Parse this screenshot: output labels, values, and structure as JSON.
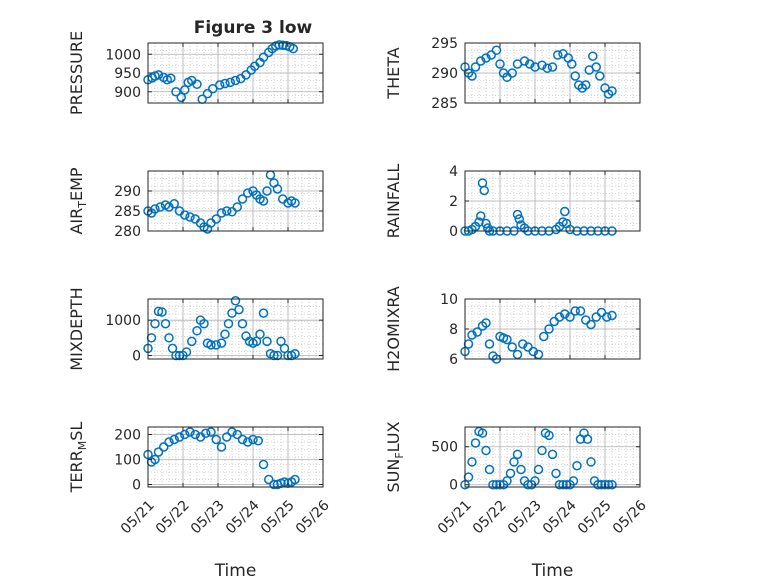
{
  "figure_title": "Figure 3 low",
  "colors": {
    "marker": "#0072BD",
    "axis": "#262626",
    "grid": "#b0b0b0",
    "background": "#ffffff"
  },
  "chart_data": [
    {
      "type": "scatter",
      "title": "Figure 3 low",
      "ylabel": "PRESSURE",
      "xlabel": "",
      "x_ticks": [
        "05/21",
        "05/22",
        "05/23",
        "05/24",
        "05/25",
        "05/26"
      ],
      "xlim": [
        0,
        5
      ],
      "ylim": [
        870,
        1030
      ],
      "y_ticks": [
        900,
        950,
        1000
      ],
      "grid": true,
      "series": [
        {
          "x": [
            0,
            0.12,
            0.2,
            0.3,
            0.45,
            0.55,
            0.65,
            0.8,
            0.95,
            1.05,
            1.15,
            1.25,
            1.4,
            1.55,
            1.7,
            1.85,
            2.05,
            2.2,
            2.35,
            2.5,
            2.65,
            2.8,
            2.95,
            3.05,
            3.2,
            3.3,
            3.45,
            3.55,
            3.65,
            3.75,
            3.85,
            3.95,
            4.05,
            4.15
          ],
          "y": [
            932,
            937,
            942,
            945,
            938,
            932,
            936,
            900,
            885,
            905,
            925,
            930,
            920,
            880,
            895,
            908,
            918,
            922,
            925,
            930,
            935,
            945,
            958,
            968,
            978,
            992,
            1005,
            1015,
            1022,
            1025,
            1024,
            1023,
            1020,
            1015
          ]
        }
      ]
    },
    {
      "type": "scatter",
      "title": "",
      "ylabel": "THETA",
      "xlabel": "",
      "x_ticks": [
        "05/21",
        "05/22",
        "05/23",
        "05/24",
        "05/25",
        "05/26"
      ],
      "xlim": [
        0,
        5
      ],
      "ylim": [
        285,
        295
      ],
      "y_ticks": [
        285,
        290,
        295
      ],
      "grid": true,
      "series": [
        {
          "x": [
            0,
            0.1,
            0.2,
            0.3,
            0.45,
            0.6,
            0.75,
            0.9,
            1.0,
            1.1,
            1.2,
            1.35,
            1.5,
            1.7,
            1.85,
            2.0,
            2.2,
            2.35,
            2.5,
            2.65,
            2.8,
            2.95,
            3.05,
            3.15,
            3.25,
            3.35,
            3.45,
            3.55,
            3.65,
            3.75,
            3.85,
            4.0,
            4.1,
            4.2
          ],
          "y": [
            291,
            290,
            289.5,
            291,
            292,
            292.5,
            293,
            293.8,
            291.5,
            290,
            289.3,
            290,
            291.5,
            292,
            291.5,
            291,
            291.3,
            290.8,
            291,
            293,
            293.2,
            292.5,
            291.5,
            289.5,
            288,
            287.5,
            288,
            290.5,
            292.8,
            291,
            289.5,
            287.5,
            286.5,
            287
          ]
        }
      ]
    },
    {
      "type": "scatter",
      "title": "",
      "ylabel_base": "AIR",
      "ylabel_sub": "T",
      "ylabel_rest": "EMP",
      "xlabel": "",
      "x_ticks": [
        "05/21",
        "05/22",
        "05/23",
        "05/24",
        "05/25",
        "05/26"
      ],
      "xlim": [
        0,
        5
      ],
      "ylim": [
        280,
        295
      ],
      "y_ticks": [
        280,
        285,
        290
      ],
      "grid": true,
      "series": [
        {
          "x": [
            0,
            0.1,
            0.2,
            0.35,
            0.5,
            0.6,
            0.75,
            0.9,
            1.05,
            1.2,
            1.35,
            1.5,
            1.6,
            1.7,
            1.8,
            1.95,
            2.1,
            2.25,
            2.4,
            2.55,
            2.7,
            2.85,
            3.0,
            3.1,
            3.2,
            3.3,
            3.4,
            3.5,
            3.6,
            3.7,
            3.85,
            4.0,
            4.1,
            4.2
          ],
          "y": [
            285,
            284.5,
            285.5,
            286,
            286.5,
            286,
            286.8,
            285,
            284,
            283.5,
            283,
            282,
            281,
            280.5,
            282,
            283,
            284.5,
            285,
            284.8,
            286,
            288,
            289.5,
            290,
            289,
            288,
            287.5,
            290,
            294,
            292,
            290.5,
            288,
            287,
            287.5,
            287
          ]
        }
      ]
    },
    {
      "type": "scatter",
      "title": "",
      "ylabel": "RAINFALL",
      "xlabel": "",
      "x_ticks": [
        "05/21",
        "05/22",
        "05/23",
        "05/24",
        "05/25",
        "05/26"
      ],
      "xlim": [
        0,
        5
      ],
      "ylim": [
        0,
        4
      ],
      "y_ticks": [
        0,
        2,
        4
      ],
      "grid": true,
      "series": [
        {
          "x": [
            0,
            0.1,
            0.2,
            0.3,
            0.4,
            0.45,
            0.5,
            0.55,
            0.6,
            0.65,
            0.7,
            0.8,
            1.0,
            1.2,
            1.4,
            1.5,
            1.55,
            1.6,
            1.7,
            1.8,
            2.0,
            2.2,
            2.4,
            2.6,
            2.7,
            2.8,
            2.85,
            2.9,
            3.0,
            3.2,
            3.4,
            3.6,
            3.8,
            4.0,
            4.2
          ],
          "y": [
            0,
            0,
            0.1,
            0.3,
            0.6,
            1.0,
            3.2,
            2.7,
            0.5,
            0.2,
            0,
            0,
            0,
            0,
            0,
            1.1,
            0.8,
            0.4,
            0.2,
            0,
            0,
            0,
            0,
            0.1,
            0.3,
            0.6,
            1.3,
            0.5,
            0.1,
            0,
            0,
            0,
            0,
            0,
            0
          ]
        }
      ]
    },
    {
      "type": "scatter",
      "title": "",
      "ylabel": "MIXDEPTH",
      "xlabel": "",
      "x_ticks": [
        "05/21",
        "05/22",
        "05/23",
        "05/24",
        "05/25",
        "05/26"
      ],
      "xlim": [
        0,
        5
      ],
      "ylim": [
        -100,
        1600
      ],
      "y_ticks": [
        0,
        1000
      ],
      "grid": true,
      "series": [
        {
          "x": [
            0,
            0.1,
            0.2,
            0.3,
            0.4,
            0.5,
            0.6,
            0.7,
            0.8,
            0.9,
            1.0,
            1.1,
            1.25,
            1.4,
            1.5,
            1.6,
            1.7,
            1.8,
            1.95,
            2.1,
            2.2,
            2.3,
            2.4,
            2.5,
            2.6,
            2.7,
            2.8,
            2.9,
            3.0,
            3.1,
            3.2,
            3.3,
            3.4,
            3.5,
            3.6,
            3.7,
            3.8,
            3.9,
            4.0,
            4.1,
            4.2
          ],
          "y": [
            200,
            500,
            900,
            1250,
            1230,
            900,
            500,
            200,
            0,
            0,
            0,
            100,
            400,
            700,
            1000,
            900,
            350,
            300,
            300,
            350,
            600,
            900,
            1200,
            1550,
            1300,
            900,
            550,
            400,
            350,
            400,
            600,
            1200,
            400,
            50,
            0,
            0,
            400,
            200,
            0,
            0,
            50
          ]
        }
      ]
    },
    {
      "type": "scatter",
      "title": "",
      "ylabel": "H2OMIXRA",
      "xlabel": "",
      "x_ticks": [
        "05/21",
        "05/22",
        "05/23",
        "05/24",
        "05/25",
        "05/26"
      ],
      "xlim": [
        0,
        5
      ],
      "ylim": [
        6,
        10
      ],
      "y_ticks": [
        6,
        8,
        10
      ],
      "grid": true,
      "series": [
        {
          "x": [
            0,
            0.1,
            0.2,
            0.35,
            0.5,
            0.6,
            0.7,
            0.8,
            0.9,
            1.0,
            1.1,
            1.2,
            1.35,
            1.5,
            1.65,
            1.8,
            1.95,
            2.1,
            2.25,
            2.4,
            2.55,
            2.7,
            2.85,
            3.0,
            3.15,
            3.3,
            3.45,
            3.6,
            3.75,
            3.9,
            4.05,
            4.2
          ],
          "y": [
            6.5,
            7,
            7.6,
            7.8,
            8.2,
            8.4,
            7.0,
            6.2,
            6.0,
            7.5,
            7.4,
            7.3,
            6.8,
            6.3,
            7.0,
            6.8,
            6.5,
            6.3,
            7.5,
            8.0,
            8.5,
            8.8,
            9.0,
            8.8,
            9.2,
            9.2,
            8.6,
            8.3,
            8.8,
            9.1,
            8.8,
            8.9
          ]
        }
      ]
    },
    {
      "type": "scatter",
      "title": "",
      "ylabel_base": "TERR",
      "ylabel_sub": "M",
      "ylabel_rest": "SL",
      "xlabel": "Time",
      "x_ticks": [
        "05/21",
        "05/22",
        "05/23",
        "05/24",
        "05/25",
        "05/26"
      ],
      "xlim": [
        0,
        5
      ],
      "ylim": [
        -10,
        230
      ],
      "y_ticks": [
        0,
        100,
        200
      ],
      "grid": true,
      "series": [
        {
          "x": [
            0,
            0.1,
            0.2,
            0.3,
            0.45,
            0.6,
            0.75,
            0.9,
            1.05,
            1.2,
            1.35,
            1.5,
            1.65,
            1.8,
            1.95,
            2.1,
            2.25,
            2.4,
            2.55,
            2.7,
            2.85,
            3.0,
            3.15,
            3.3,
            3.45,
            3.6,
            3.7,
            3.8,
            3.9,
            4.0,
            4.1,
            4.2
          ],
          "y": [
            120,
            90,
            100,
            130,
            150,
            170,
            180,
            190,
            200,
            210,
            200,
            190,
            205,
            210,
            180,
            150,
            190,
            210,
            200,
            180,
            170,
            180,
            175,
            80,
            20,
            0,
            0,
            5,
            10,
            5,
            10,
            20
          ]
        }
      ]
    },
    {
      "type": "scatter",
      "title": "",
      "ylabel_base": "SUN",
      "ylabel_sub": "F",
      "ylabel_rest": "LUX",
      "xlabel": "Time",
      "x_ticks": [
        "05/21",
        "05/22",
        "05/23",
        "05/24",
        "05/25",
        "05/26"
      ],
      "xlim": [
        0,
        5
      ],
      "ylim": [
        -30,
        760
      ],
      "y_ticks": [
        0,
        500
      ],
      "grid": true,
      "series": [
        {
          "x": [
            0,
            0.1,
            0.2,
            0.3,
            0.4,
            0.5,
            0.6,
            0.7,
            0.8,
            0.9,
            1.0,
            1.1,
            1.2,
            1.3,
            1.4,
            1.5,
            1.6,
            1.7,
            1.8,
            1.9,
            2.0,
            2.1,
            2.2,
            2.3,
            2.4,
            2.5,
            2.6,
            2.7,
            2.8,
            2.9,
            3.0,
            3.1,
            3.2,
            3.3,
            3.4,
            3.5,
            3.6,
            3.7,
            3.8,
            3.9,
            4.0,
            4.1,
            4.2
          ],
          "y": [
            0,
            100,
            300,
            550,
            700,
            680,
            450,
            200,
            0,
            0,
            0,
            0,
            50,
            150,
            300,
            400,
            200,
            50,
            0,
            0,
            50,
            200,
            450,
            680,
            650,
            400,
            150,
            0,
            0,
            0,
            0,
            50,
            250,
            600,
            680,
            600,
            300,
            50,
            0,
            0,
            0,
            0,
            0
          ]
        }
      ]
    }
  ]
}
